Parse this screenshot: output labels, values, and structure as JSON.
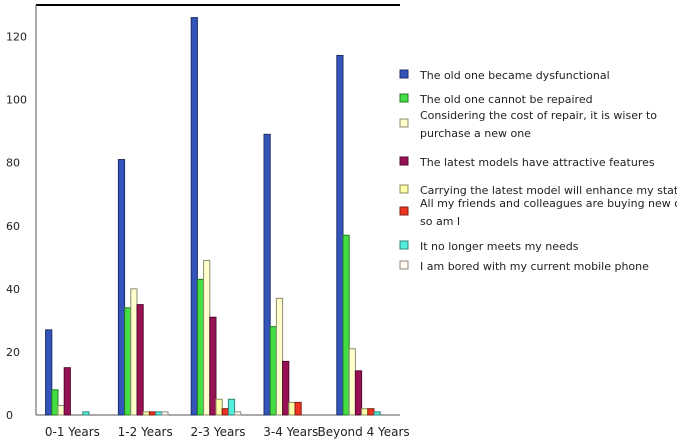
{
  "chart_data": {
    "type": "bar",
    "title": "",
    "xlabel": "",
    "ylabel": "",
    "ylim": [
      0,
      130
    ],
    "yticks": [
      0,
      20,
      40,
      60,
      80,
      100,
      120
    ],
    "grid": false,
    "legend_position": "right",
    "categories": [
      "0-1 Years",
      "1-2 Years",
      "2-3 Years",
      "3-4 Years",
      "Beyond 4 Years"
    ],
    "series": [
      {
        "name": "The old one became dysfunctional",
        "color": "#3355bb",
        "values": [
          27,
          81,
          126,
          89,
          114
        ]
      },
      {
        "name": "The old one cannot be repaired",
        "color": "#44dd44",
        "values": [
          8,
          34,
          43,
          28,
          57
        ]
      },
      {
        "name": "Considering the cost of repair, it is wiser to purchase a new one",
        "color": "#ffffcc",
        "values": [
          3,
          40,
          49,
          37,
          21
        ]
      },
      {
        "name": "The latest models have attractive features",
        "color": "#991155",
        "values": [
          15,
          35,
          31,
          17,
          14
        ]
      },
      {
        "name": "Carrying the latest model will enhance my status",
        "color": "#ffffaa",
        "values": [
          0,
          1,
          5,
          4,
          2
        ]
      },
      {
        "name": "All my friends and colleagues are buying new ones, so am I",
        "color": "#ee3322",
        "values": [
          0,
          1,
          2,
          4,
          2
        ]
      },
      {
        "name": "It no longer meets my needs",
        "color": "#55eedd",
        "values": [
          1,
          1,
          5,
          0,
          1
        ]
      },
      {
        "name": "I am bored with my current mobile phone",
        "color": "#fffaf0",
        "values": [
          0,
          1,
          1,
          0,
          0
        ]
      }
    ],
    "legend_lines": [
      [
        "The old one became dysfunctional"
      ],
      [
        "The old one cannot be repaired"
      ],
      [
        "Considering the cost of repair, it is wiser to",
        "purchase a new one"
      ],
      [
        "The latest models have attractive features"
      ],
      [
        "Carrying the latest model will enhance my status"
      ],
      [
        "All my friends and colleagues are buying new ones,",
        "so am I"
      ],
      [
        "It no longer meets my needs"
      ],
      [
        "I am bored with my current mobile phone"
      ]
    ]
  }
}
